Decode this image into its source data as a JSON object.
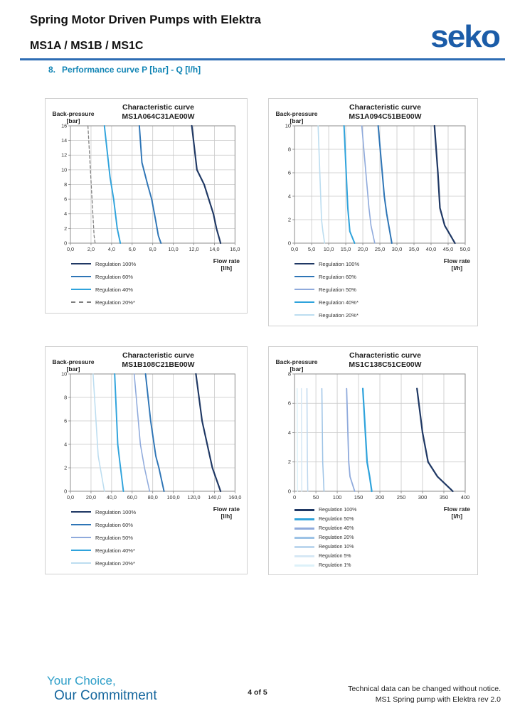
{
  "header": {
    "title": "Spring Motor Driven Pumps with Elektra",
    "subtitle": "MS1A / MS1B / MS1C",
    "logo_text": "seko",
    "logo_color": "#1B5CA8",
    "rule_color": "#2E6DB4"
  },
  "section": {
    "number": "8.",
    "title": "Performance curve P [bar] - Q [l/h]",
    "color": "#1285B5"
  },
  "footer": {
    "tagline_line1": "Your Choice,",
    "tagline_line2": "Our Commitment",
    "page_number": "4 of 5",
    "notice_line1": "Technical data can be changed without notice.",
    "notice_line2": "MS1 Spring pump with Elektra rev 2.0"
  },
  "chart_data": [
    {
      "type": "line",
      "title": "Characteristic curve",
      "subtitle": "MS1A064C31AE00W",
      "ylabel": "Back-pressure [bar]",
      "xlabel": "Flow rate [l/h]",
      "ylabel_lines": [
        "Back-pressure",
        "[bar]"
      ],
      "xlabel_lines": [
        "Flow rate",
        "[l/h]"
      ],
      "xlim": [
        0,
        16
      ],
      "ylim": [
        0,
        16
      ],
      "grid": true,
      "legend_position": "bottom-left",
      "x_tick_values": [
        0,
        2,
        4,
        6,
        8,
        10,
        12,
        14,
        16
      ],
      "x_tick_labels": [
        "0,0",
        "2,0",
        "4,0",
        "6,0",
        "8,0",
        "10,0",
        "12,0",
        "14,0",
        "16,0"
      ],
      "y_tick_values": [
        0,
        2,
        4,
        6,
        8,
        10,
        12,
        14,
        16
      ],
      "series": [
        {
          "name": "Regulation 100%",
          "color": "#1F3864",
          "dash": false,
          "width": 2.2,
          "points": [
            [
              11.8,
              16
            ],
            [
              12.3,
              10
            ],
            [
              13.0,
              8
            ],
            [
              13.9,
              4
            ],
            [
              14.2,
              2
            ],
            [
              14.6,
              0
            ]
          ]
        },
        {
          "name": "Regulation 60%",
          "color": "#2E75B6",
          "dash": false,
          "width": 2,
          "points": [
            [
              6.7,
              16
            ],
            [
              6.95,
              11
            ],
            [
              7.5,
              8
            ],
            [
              7.9,
              6
            ],
            [
              8.3,
              3
            ],
            [
              8.55,
              1
            ],
            [
              8.8,
              0
            ]
          ]
        },
        {
          "name": "Regulation 40%",
          "color": "#2FA3DC",
          "dash": false,
          "width": 2,
          "points": [
            [
              3.3,
              16
            ],
            [
              3.85,
              9
            ],
            [
              4.2,
              6
            ],
            [
              4.55,
              2
            ],
            [
              4.85,
              0
            ]
          ]
        },
        {
          "name": "Regulation 20%*",
          "color": "#7F7F7F",
          "dash": true,
          "width": 1.3,
          "points": [
            [
              1.7,
              16
            ],
            [
              2.1,
              6
            ],
            [
              2.3,
              1
            ],
            [
              2.4,
              0
            ]
          ]
        }
      ]
    },
    {
      "type": "line",
      "title": "Characteristic curve",
      "subtitle": "MS1A094C51BE00W",
      "ylabel": "Back-pressure [bar]",
      "xlabel": "Flow rate [l/h]",
      "ylabel_lines": [
        "Back-pressure",
        "[bar]"
      ],
      "xlabel_lines": [
        "Flow rate",
        "[l/h]"
      ],
      "xlim": [
        0,
        50
      ],
      "ylim": [
        0,
        10
      ],
      "grid": true,
      "legend_position": "bottom-left",
      "x_tick_values": [
        0,
        5,
        10,
        15,
        20,
        25,
        30,
        35,
        40,
        45,
        50
      ],
      "x_tick_labels": [
        "0,0",
        "5,0",
        "10,0",
        "15,0",
        "20,0",
        "25,0",
        "30,0",
        "35,0",
        "40,0",
        "45,0",
        "50,0"
      ],
      "y_tick_values": [
        0,
        2,
        4,
        6,
        8,
        10
      ],
      "series": [
        {
          "name": "Regulation 100%",
          "color": "#1F3864",
          "dash": false,
          "width": 2.2,
          "points": [
            [
              41,
              10
            ],
            [
              42,
              6
            ],
            [
              42.6,
              3
            ],
            [
              44,
              1.5
            ],
            [
              47,
              0
            ]
          ]
        },
        {
          "name": "Regulation 60%",
          "color": "#2E75B6",
          "dash": false,
          "width": 2,
          "points": [
            [
              24.5,
              10
            ],
            [
              26.3,
              4
            ],
            [
              27,
              2.5
            ],
            [
              28.5,
              0
            ]
          ]
        },
        {
          "name": "Regulation 50%",
          "color": "#8FAADC",
          "dash": false,
          "width": 1.6,
          "points": [
            [
              19.7,
              10
            ],
            [
              21.8,
              3
            ],
            [
              22.4,
              1.5
            ],
            [
              23.5,
              0
            ]
          ]
        },
        {
          "name": "Regulation 40%*",
          "color": "#2FA3DC",
          "dash": false,
          "width": 2,
          "points": [
            [
              14.5,
              10
            ],
            [
              15.6,
              3
            ],
            [
              16.2,
              1
            ],
            [
              17.6,
              0
            ]
          ]
        },
        {
          "name": "Regulation 20%*",
          "color": "#BCDDF0",
          "dash": false,
          "width": 1.6,
          "points": [
            [
              6.9,
              10
            ],
            [
              7.9,
              2
            ],
            [
              8.3,
              1
            ],
            [
              8.8,
              0
            ]
          ]
        }
      ]
    },
    {
      "type": "line",
      "title": "Characteristic curve",
      "subtitle": "MS1B108C21BE00W",
      "ylabel": "Back-pressure [bar]",
      "xlabel": "Flow rate [l/h]",
      "ylabel_lines": [
        "Back-pressure",
        "[bar]"
      ],
      "xlabel_lines": [
        "Flow rate",
        "[l/h]"
      ],
      "xlim": [
        0,
        160
      ],
      "ylim": [
        0,
        10
      ],
      "grid": true,
      "legend_position": "bottom-left",
      "x_tick_values": [
        0,
        20,
        40,
        60,
        80,
        100,
        120,
        140,
        160
      ],
      "x_tick_labels": [
        "0,0",
        "20,0",
        "40,0",
        "60,0",
        "80,0",
        "100,0",
        "120,0",
        "140,0",
        "160,0"
      ],
      "y_tick_values": [
        0,
        2,
        4,
        6,
        8,
        10
      ],
      "series": [
        {
          "name": "Regulation 100%",
          "color": "#1F3864",
          "dash": false,
          "width": 2.2,
          "points": [
            [
              122,
              10
            ],
            [
              128,
              6
            ],
            [
              133,
              4
            ],
            [
              138,
              2
            ],
            [
              146,
              0
            ]
          ]
        },
        {
          "name": "Regulation 60%",
          "color": "#2E75B6",
          "dash": false,
          "width": 2,
          "points": [
            [
              73,
              10
            ],
            [
              78,
              6
            ],
            [
              83,
              3
            ],
            [
              86,
              2
            ],
            [
              91,
              0
            ]
          ]
        },
        {
          "name": "Regulation 50%",
          "color": "#8FAADC",
          "dash": false,
          "width": 1.6,
          "points": [
            [
              62,
              10
            ],
            [
              68,
              4
            ],
            [
              72,
              2
            ],
            [
              77,
              0
            ]
          ]
        },
        {
          "name": "Regulation 40%*",
          "color": "#2FA3DC",
          "dash": false,
          "width": 2,
          "points": [
            [
              43,
              10
            ],
            [
              46,
              4
            ],
            [
              48,
              2.5
            ],
            [
              51.5,
              0
            ]
          ]
        },
        {
          "name": "Regulation 20%*",
          "color": "#BCDDF0",
          "dash": false,
          "width": 1.6,
          "points": [
            [
              22,
              10
            ],
            [
              27,
              3
            ],
            [
              29,
              2
            ],
            [
              33,
              0
            ]
          ]
        }
      ]
    },
    {
      "type": "line",
      "title": "Characteristic curve",
      "subtitle": "MS1C138C51CE00W",
      "ylabel": "Back-pressure [bar]",
      "xlabel": "Flow rate [l/h]",
      "ylabel_lines": [
        "Back-pressure",
        "[bar]"
      ],
      "xlabel_lines": [
        "Flow rate",
        "[l/h]"
      ],
      "xlim": [
        0,
        400
      ],
      "ylim": [
        0,
        8
      ],
      "grid": true,
      "legend_position": "bottom-left",
      "x_tick_values": [
        0,
        50,
        100,
        150,
        200,
        250,
        300,
        350,
        400
      ],
      "x_tick_labels": [
        "0",
        "50",
        "100",
        "150",
        "200",
        "250",
        "300",
        "350",
        "400"
      ],
      "y_tick_values": [
        0,
        2,
        4,
        6,
        8
      ],
      "series": [
        {
          "name": "Regulation 100%",
          "color": "#1F3864",
          "dash": false,
          "width": 2.2,
          "points": [
            [
              287,
              7
            ],
            [
              300,
              4
            ],
            [
              313,
              2
            ],
            [
              335,
              1
            ],
            [
              371,
              0
            ]
          ]
        },
        {
          "name": "Regulation 50%",
          "color": "#2FA3DC",
          "dash": false,
          "width": 2.2,
          "points": [
            [
              160,
              7
            ],
            [
              170,
              2
            ],
            [
              176,
              1
            ],
            [
              181,
              0
            ]
          ]
        },
        {
          "name": "Regulation 40%",
          "color": "#8FAADC",
          "dash": false,
          "width": 1.8,
          "points": [
            [
              122,
              7
            ],
            [
              125,
              4
            ],
            [
              127,
              2
            ],
            [
              130,
              1
            ],
            [
              141,
              0
            ]
          ]
        },
        {
          "name": "Regulation 20%",
          "color": "#9DC3E6",
          "dash": false,
          "width": 1.5,
          "points": [
            [
              64,
              7
            ],
            [
              66,
              2
            ],
            [
              69,
              0
            ]
          ]
        },
        {
          "name": "Regulation 10%",
          "color": "#BDD7EE",
          "dash": false,
          "width": 1.5,
          "points": [
            [
              29,
              7
            ],
            [
              30,
              2
            ],
            [
              31,
              0
            ]
          ]
        },
        {
          "name": "Regulation 5%",
          "color": "#D6E8F5",
          "dash": false,
          "width": 1.5,
          "points": [
            [
              16,
              7
            ],
            [
              17,
              0
            ]
          ]
        },
        {
          "name": "Regulation 1%",
          "color": "#DDF1F9",
          "dash": false,
          "width": 1.5,
          "points": [
            [
              6,
              7
            ],
            [
              7,
              0
            ]
          ]
        }
      ]
    }
  ]
}
